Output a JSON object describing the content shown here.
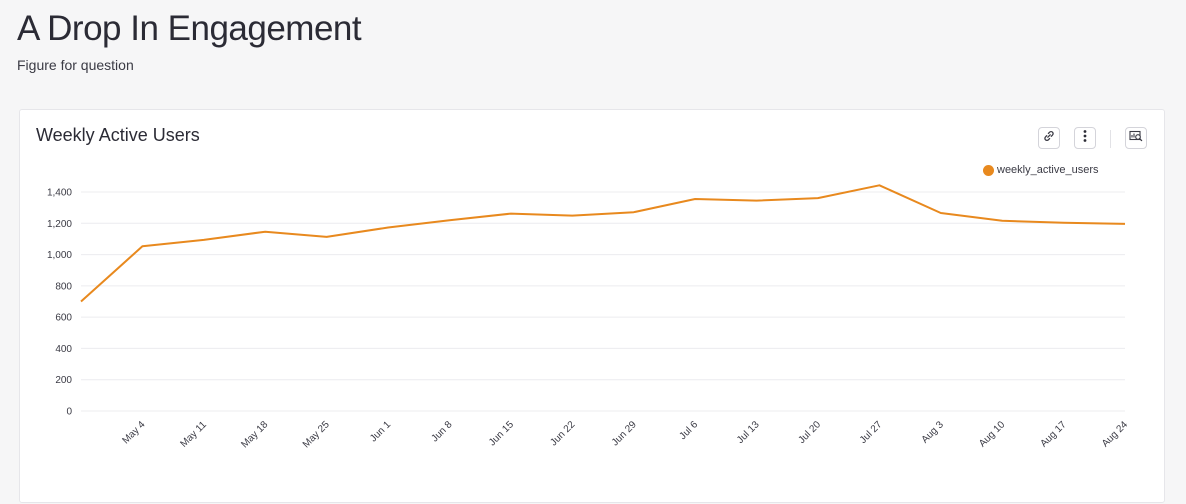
{
  "page": {
    "title": "A Drop In Engagement",
    "subtitle": "Figure for question"
  },
  "card": {
    "title": "Weekly Active Users",
    "toolbar": {
      "link_icon": "link-icon",
      "more_icon": "vertical-ellipsis-icon",
      "explore_icon": "chart-search-icon"
    }
  },
  "chart_data": {
    "type": "line",
    "title": "Weekly Active Users",
    "xlabel": "",
    "ylabel": "",
    "ylim": [
      0,
      1400
    ],
    "y_ticks": [
      "0",
      "200",
      "400",
      "600",
      "800",
      "1,000",
      "1,200",
      "1,400"
    ],
    "grid": true,
    "legend_position": "top-right",
    "x_tick_labels": [
      "May 4",
      "May 11",
      "May 18",
      "May 25",
      "Jun 1",
      "Jun 8",
      "Jun 15",
      "Jun 22",
      "Jun 29",
      "Jul 6",
      "Jul 13",
      "Jul 20",
      "Jul 27",
      "Aug 3",
      "Aug 10",
      "Aug 17",
      "Aug 24"
    ],
    "x": [
      "2020-04-27",
      "2020-05-04",
      "2020-05-11",
      "2020-05-18",
      "2020-05-25",
      "2020-06-01",
      "2020-06-08",
      "2020-06-15",
      "2020-06-22",
      "2020-06-29",
      "2020-07-06",
      "2020-07-13",
      "2020-07-20",
      "2020-07-27",
      "2020-08-03",
      "2020-08-10",
      "2020-08-17",
      "2020-08-24"
    ],
    "series": [
      {
        "name": "weekly_active_users",
        "color": "#e8891e",
        "values": [
          700,
          1053,
          1094,
          1146,
          1113,
          1173,
          1219,
          1262,
          1249,
          1271,
          1355,
          1345,
          1361,
          1443,
          1266,
          1216,
          1204,
          1196
        ]
      }
    ]
  }
}
